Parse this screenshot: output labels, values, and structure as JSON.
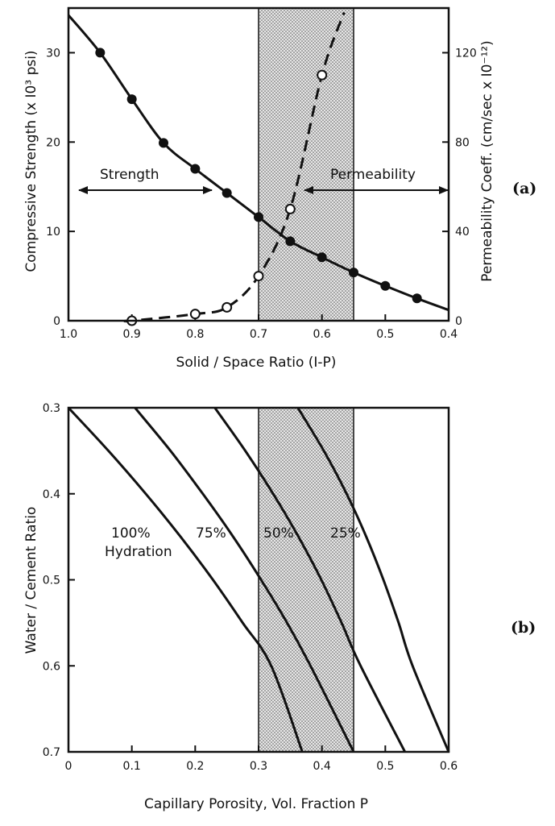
{
  "chart_data": [
    {
      "panel": "(a)",
      "type": "line",
      "xlabel": "Solid / Space Ratio (I-P)",
      "ylabel": "Compressive Strength (x I0³ psi)",
      "ylabel_right": "Permeability Coeff. (cm/sec x I0⁻¹²)",
      "xlim": [
        1.0,
        0.4
      ],
      "ylim": [
        0,
        35
      ],
      "ylim_right": [
        0,
        140
      ],
      "x_ticks": [
        "1.0",
        "0.9",
        "0.8",
        "0.7",
        "0.6",
        "0.5",
        "0.4"
      ],
      "y_ticks": [
        "0",
        "10",
        "20",
        "30"
      ],
      "y_ticks_right": [
        "0",
        "40",
        "80",
        "120"
      ],
      "shaded_x_range": [
        0.7,
        0.55
      ],
      "annotations": {
        "strength": "Strength",
        "permeability": "Permeability"
      },
      "series": [
        {
          "axis": "left",
          "style": "solid-filled-markers",
          "x": [
            0.95,
            0.9,
            0.85,
            0.8,
            0.75,
            0.7,
            0.65,
            0.6,
            0.55,
            0.5,
            0.45
          ],
          "y": [
            30.0,
            24.8,
            19.9,
            17.0,
            14.3,
            11.6,
            8.9,
            7.1,
            5.4,
            3.9,
            2.5
          ]
        },
        {
          "axis": "right",
          "style": "dashed-open-markers",
          "x": [
            0.9,
            0.8,
            0.75,
            0.7,
            0.65,
            0.6
          ],
          "y": [
            0,
            3,
            6,
            20,
            50,
            110
          ]
        }
      ]
    },
    {
      "panel": "(b)",
      "type": "line",
      "xlabel": "Capillary Porosity, Vol. Fraction P",
      "ylabel": "Water / Cement Ratio",
      "xlim": [
        0,
        0.6
      ],
      "ylim": [
        0.7,
        0.3
      ],
      "x_ticks": [
        "0",
        "0.1",
        "0.2",
        "0.3",
        "0.4",
        "0.5",
        "0.6"
      ],
      "y_ticks": [
        "0.3",
        "0.4",
        "0.5",
        "0.6",
        "0.7"
      ],
      "shaded_x_range": [
        0.3,
        0.45
      ],
      "curve_labels": [
        "100%",
        "Hydration",
        "75%",
        "50%",
        "25%"
      ],
      "series": [
        {
          "label": "100%",
          "x": [
            0.0,
            0.063,
            0.122,
            0.177,
            0.228,
            0.275,
            0.32,
            0.369
          ],
          "y": [
            0.3,
            0.35,
            0.4,
            0.45,
            0.5,
            0.55,
            0.6,
            0.7
          ]
        },
        {
          "label": "75%",
          "x": [
            0.105,
            0.161,
            0.212,
            0.26,
            0.304,
            0.345,
            0.382,
            0.45
          ],
          "y": [
            0.3,
            0.35,
            0.4,
            0.45,
            0.5,
            0.55,
            0.6,
            0.7
          ]
        },
        {
          "label": "50%",
          "x": [
            0.231,
            0.279,
            0.323,
            0.363,
            0.399,
            0.431,
            0.461,
            0.531
          ],
          "y": [
            0.3,
            0.35,
            0.4,
            0.45,
            0.5,
            0.55,
            0.6,
            0.7
          ]
        },
        {
          "label": "25%",
          "x": [
            0.362,
            0.403,
            0.439,
            0.47,
            0.497,
            0.521,
            0.543,
            0.6
          ],
          "y": [
            0.3,
            0.35,
            0.4,
            0.45,
            0.5,
            0.55,
            0.6,
            0.7
          ]
        }
      ]
    }
  ]
}
